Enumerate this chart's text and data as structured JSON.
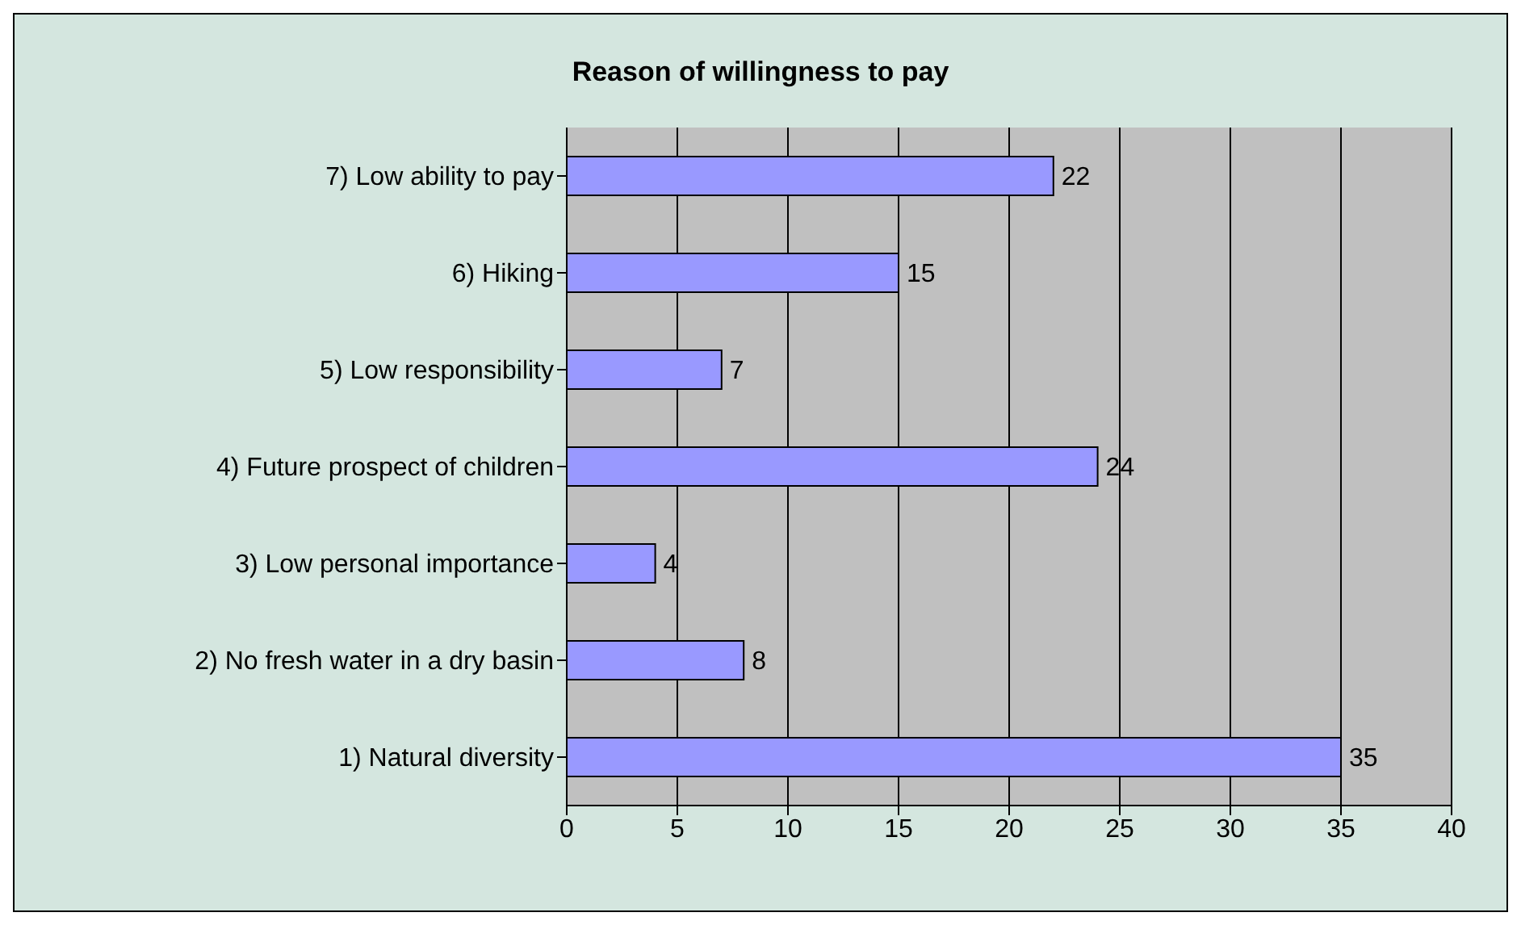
{
  "chart_data": {
    "type": "bar",
    "orientation": "horizontal",
    "title": "Reason of willingness to pay",
    "categories": [
      "7) Low ability to pay",
      "6) Hiking",
      "5) Low responsibility",
      "4) Future prospect of children",
      "3) Low personal importance",
      "2) No fresh water in a dry basin",
      "1) Natural diversity"
    ],
    "values": [
      22,
      15,
      7,
      24,
      4,
      8,
      35
    ],
    "color": "#9999ff",
    "xlim": [
      0,
      40
    ],
    "xticks": [
      0,
      5,
      10,
      15,
      20,
      25,
      30,
      35,
      40
    ],
    "grid": "x",
    "data_labels": true
  }
}
